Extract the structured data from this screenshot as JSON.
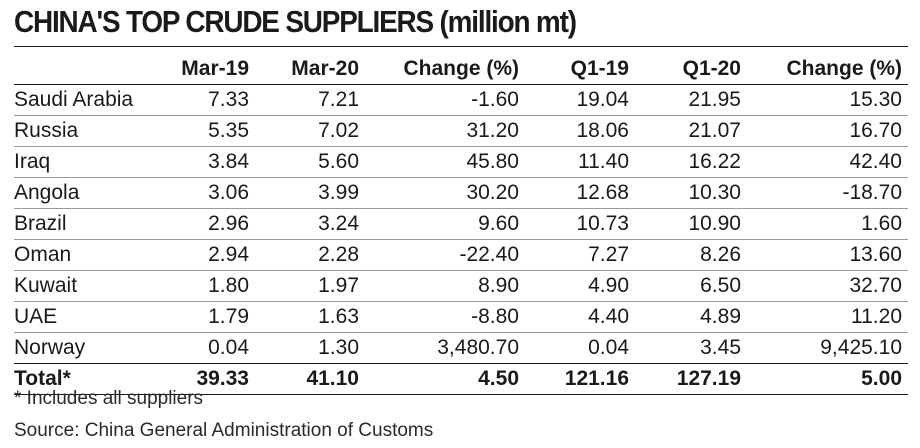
{
  "chart_data": {
    "type": "table",
    "title": "CHINA'S TOP CRUDE SUPPLIERS (million mt)",
    "columns": [
      "",
      "Mar-19",
      "Mar-20",
      "Change (%)",
      "Q1-19",
      "Q1-20",
      "Change (%)"
    ],
    "rows": [
      {
        "country": "Saudi Arabia",
        "values": [
          "7.33",
          "7.21",
          "-1.60",
          "19.04",
          "21.95",
          "15.30"
        ]
      },
      {
        "country": "Russia",
        "values": [
          "5.35",
          "7.02",
          "31.20",
          "18.06",
          "21.07",
          "16.70"
        ]
      },
      {
        "country": "Iraq",
        "values": [
          "3.84",
          "5.60",
          "45.80",
          "11.40",
          "16.22",
          "42.40"
        ]
      },
      {
        "country": "Angola",
        "values": [
          "3.06",
          "3.99",
          "30.20",
          "12.68",
          "10.30",
          "-18.70"
        ]
      },
      {
        "country": "Brazil",
        "values": [
          "2.96",
          "3.24",
          "9.60",
          "10.73",
          "10.90",
          "1.60"
        ]
      },
      {
        "country": "Oman",
        "values": [
          "2.94",
          "2.28",
          "-22.40",
          "7.27",
          "8.26",
          "13.60"
        ]
      },
      {
        "country": "Kuwait",
        "values": [
          "1.80",
          "1.97",
          "8.90",
          "4.90",
          "6.50",
          "32.70"
        ]
      },
      {
        "country": "UAE",
        "values": [
          "1.79",
          "1.63",
          "-8.80",
          "4.40",
          "4.89",
          "11.20"
        ]
      },
      {
        "country": "Norway",
        "values": [
          "0.04",
          "1.30",
          "3,480.70",
          "0.04",
          "3.45",
          "9,425.10"
        ]
      }
    ],
    "total": {
      "country": "Total*",
      "values": [
        "39.33",
        "41.10",
        "4.50",
        "121.16",
        "127.19",
        "5.00"
      ]
    },
    "footnote": "* Includes all suppliers",
    "source": "Source: China General Administration of Customs"
  }
}
